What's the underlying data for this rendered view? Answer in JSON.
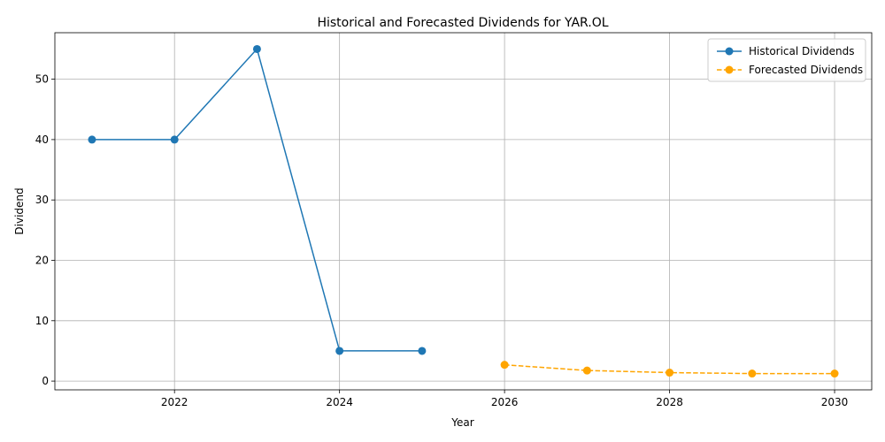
{
  "chart_data": {
    "type": "line",
    "title": "Historical and Forecasted Dividends for YAR.OL",
    "xlabel": "Year",
    "ylabel": "Dividend",
    "xlim": [
      2020.55,
      2030.45
    ],
    "ylim": [
      -1.45,
      57.7
    ],
    "x_ticks": [
      2022,
      2024,
      2026,
      2028,
      2030
    ],
    "y_ticks": [
      0,
      10,
      20,
      30,
      40,
      50
    ],
    "grid": true,
    "legend_position": "top-right",
    "series": [
      {
        "name": "Historical Dividends",
        "color": "#1f77b4",
        "line_style": "solid",
        "marker": "circle",
        "x": [
          2021,
          2022,
          2023,
          2024,
          2025
        ],
        "values": [
          40,
          40,
          55,
          5,
          5
        ]
      },
      {
        "name": "Forecasted Dividends",
        "color": "#ffa500",
        "line_style": "dashed",
        "marker": "circle",
        "x": [
          2026,
          2027,
          2028,
          2029,
          2030
        ],
        "values": [
          2.7,
          1.75,
          1.4,
          1.25,
          1.25
        ]
      }
    ]
  }
}
